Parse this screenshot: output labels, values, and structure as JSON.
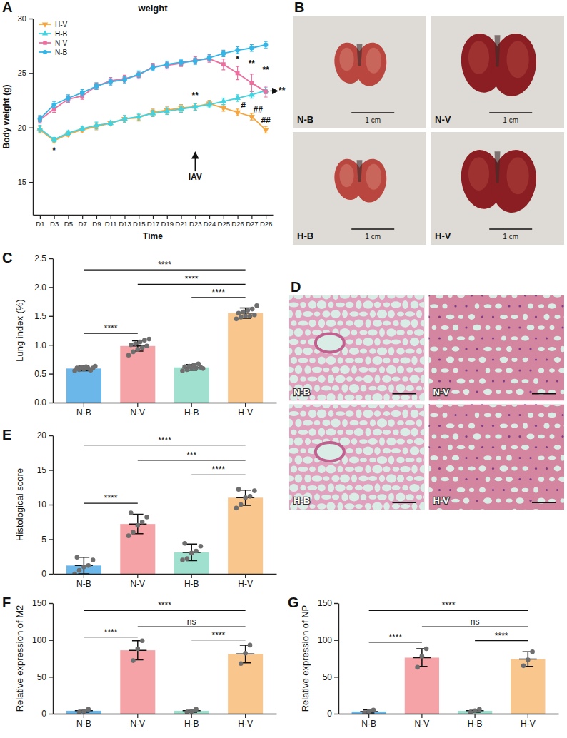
{
  "chart_data": [
    {
      "panel": "A",
      "type": "line",
      "title": "weight",
      "x_label": "Time",
      "y_label": "Body weight (g)",
      "categories": [
        "D1",
        "D3",
        "D5",
        "D7",
        "D9",
        "D11",
        "D13",
        "D15",
        "D17",
        "D19",
        "D21",
        "D23",
        "D24",
        "D25",
        "D26",
        "D27",
        "D28"
      ],
      "ylim": [
        12,
        30
      ],
      "yticks": [
        15,
        20,
        25,
        30
      ],
      "legend": "upper left",
      "series": [
        {
          "name": "H-V",
          "color": "#f5a640",
          "marker": "triangle-down",
          "values": [
            19.8,
            18.8,
            19.4,
            19.8,
            20.1,
            20.4,
            20.8,
            20.9,
            21.4,
            21.6,
            21.8,
            21.9,
            22.2,
            21.8,
            21.4,
            21.0,
            19.8
          ],
          "errors": [
            0.3,
            0.2,
            0.2,
            0.2,
            0.3,
            0.2,
            0.3,
            0.3,
            0.3,
            0.3,
            0.3,
            0.3,
            0.3,
            0.3,
            0.3,
            0.3,
            0.3
          ]
        },
        {
          "name": "H-B",
          "color": "#43d3e0",
          "marker": "triangle-up",
          "values": [
            19.9,
            18.9,
            19.5,
            19.9,
            20.2,
            20.4,
            20.8,
            21.0,
            21.3,
            21.5,
            21.7,
            21.9,
            22.1,
            22.4,
            22.7,
            23.0,
            23.4
          ],
          "errors": [
            0.3,
            0.2,
            0.2,
            0.2,
            0.3,
            0.2,
            0.3,
            0.3,
            0.3,
            0.3,
            0.3,
            0.3,
            0.3,
            0.3,
            0.3,
            0.3,
            0.3
          ]
        },
        {
          "name": "N-V",
          "color": "#ec6f9f",
          "marker": "square",
          "values": [
            20.7,
            21.7,
            22.6,
            22.9,
            23.8,
            24.3,
            24.5,
            24.8,
            25.6,
            25.7,
            25.9,
            26.2,
            26.3,
            25.8,
            25.0,
            24.1,
            23.3
          ],
          "errors": [
            0.3,
            0.3,
            0.3,
            0.3,
            0.3,
            0.3,
            0.3,
            0.3,
            0.3,
            0.3,
            0.3,
            0.3,
            0.3,
            0.5,
            0.6,
            0.8,
            0.5
          ]
        },
        {
          "name": "N-B",
          "color": "#35b4e6",
          "marker": "circle",
          "values": [
            20.8,
            22.1,
            22.7,
            23.2,
            23.8,
            24.2,
            24.4,
            24.9,
            25.5,
            25.8,
            26.0,
            26.1,
            26.4,
            26.8,
            27.1,
            27.3,
            27.6
          ],
          "errors": [
            0.3,
            0.3,
            0.3,
            0.3,
            0.3,
            0.3,
            0.3,
            0.3,
            0.3,
            0.3,
            0.3,
            0.3,
            0.3,
            0.3,
            0.3,
            0.3,
            0.3
          ]
        }
      ],
      "annotations": [
        {
          "text": "*",
          "x": 1,
          "y": 17.6
        },
        {
          "text": "**",
          "x": 11,
          "y": 22.7
        },
        {
          "text": "IAV",
          "x": 11,
          "y": 15.2,
          "marker": "arrow-up"
        },
        {
          "text": "*",
          "x": 14,
          "y": 26.0
        },
        {
          "text": "**",
          "x": 15,
          "y": 25.6
        },
        {
          "text": "**",
          "x": 16,
          "y": 25.0
        },
        {
          "text": "#",
          "x": 14.4,
          "y": 21.75
        },
        {
          "text": "##",
          "x": 15.45,
          "y": 21.35
        },
        {
          "text": "##",
          "x": 16,
          "y": 20.35
        },
        {
          "text": "**",
          "x": 16,
          "y": 23.1,
          "marker": "arrow-right"
        }
      ]
    },
    {
      "panel": "C",
      "type": "bar",
      "y_label": "Lung index (%)",
      "categories": [
        "N-B",
        "N-V",
        "H-B",
        "H-V"
      ],
      "colors": [
        "#6cb7ea",
        "#f5a3a6",
        "#9fe0cf",
        "#f9c68d"
      ],
      "values": [
        0.59,
        0.98,
        0.61,
        1.55
      ],
      "errors": [
        0.04,
        0.09,
        0.05,
        0.09
      ],
      "points": [
        [
          0.55,
          0.57,
          0.58,
          0.59,
          0.6,
          0.6,
          0.61,
          0.62,
          0.56,
          0.63
        ],
        [
          0.82,
          0.88,
          0.92,
          0.95,
          0.98,
          1.0,
          1.02,
          1.05,
          1.08,
          1.1
        ],
        [
          0.55,
          0.57,
          0.6,
          0.6,
          0.61,
          0.62,
          0.63,
          0.65,
          0.67,
          0.59
        ],
        [
          1.45,
          1.48,
          1.5,
          1.5,
          1.52,
          1.55,
          1.57,
          1.6,
          1.62,
          1.68
        ]
      ],
      "ylim": [
        0,
        2.5
      ],
      "yticks": [
        {
          "value": 0,
          "label": "0.0"
        },
        0.5,
        {
          "value": 1,
          "label": "1.0"
        },
        1.5,
        {
          "value": 2,
          "label": "2.0"
        },
        2.5
      ],
      "comparisons": [
        {
          "groups": [
            "N-B",
            "H-V"
          ],
          "label": "****",
          "y": 2.3
        },
        {
          "groups": [
            "N-V",
            "H-V"
          ],
          "label": "****",
          "y": 2.05
        },
        {
          "groups": [
            "H-B",
            "H-V"
          ],
          "label": "****",
          "y": 1.82
        },
        {
          "groups": [
            "N-B",
            "N-V"
          ],
          "label": "****",
          "y": 1.2
        }
      ]
    },
    {
      "panel": "E",
      "type": "bar",
      "y_label": "Histological score",
      "categories": [
        "N-B",
        "N-V",
        "H-B",
        "H-V"
      ],
      "colors": [
        "#6cb7ea",
        "#f5a3a6",
        "#9fe0cf",
        "#f9c68d"
      ],
      "values": [
        1.2,
        7.2,
        3.1,
        11.0
      ],
      "errors": [
        1.2,
        1.4,
        1.2,
        1.1
      ],
      "points": [
        [
          0,
          0.5,
          1,
          1.2,
          2,
          2.4
        ],
        [
          5.5,
          6,
          7,
          7.5,
          8.2,
          8.8
        ],
        [
          2,
          2.2,
          3,
          3.3,
          4,
          4.4
        ],
        [
          9.5,
          10,
          11,
          11.2,
          12,
          12.2
        ]
      ],
      "ylim": [
        0,
        20
      ],
      "yticks": [
        0,
        5,
        10,
        15,
        20
      ],
      "comparisons": [
        {
          "groups": [
            "N-B",
            "H-V"
          ],
          "label": "****",
          "y": 18.6
        },
        {
          "groups": [
            "N-V",
            "H-V"
          ],
          "label": "***",
          "y": 16.4
        },
        {
          "groups": [
            "H-B",
            "H-V"
          ],
          "label": "****",
          "y": 14.3
        },
        {
          "groups": [
            "N-B",
            "N-V"
          ],
          "label": "****",
          "y": 10.2
        }
      ]
    },
    {
      "panel": "F",
      "type": "bar",
      "y_label": "Relative expression of M2",
      "categories": [
        "N-B",
        "N-V",
        "H-B",
        "H-V"
      ],
      "colors": [
        "#6cb7ea",
        "#f5a3a6",
        "#9fe0cf",
        "#f9c68d"
      ],
      "values": [
        4,
        86,
        4,
        81
      ],
      "errors": [
        2,
        13,
        2,
        12
      ],
      "points": [
        [
          2,
          3,
          6
        ],
        [
          72,
          88,
          99
        ],
        [
          2,
          3,
          6
        ],
        [
          68,
          82,
          93
        ]
      ],
      "ylim": [
        0,
        150
      ],
      "yticks": [
        0,
        50,
        100,
        150
      ],
      "comparisons": [
        {
          "groups": [
            "N-B",
            "H-V"
          ],
          "label": "****",
          "y": 140
        },
        {
          "groups": [
            "N-V",
            "H-V"
          ],
          "label": "ns",
          "y": 118
        },
        {
          "groups": [
            "H-B",
            "H-V"
          ],
          "label": "****",
          "y": 100
        },
        {
          "groups": [
            "N-B",
            "N-V"
          ],
          "label": "****",
          "y": 104
        }
      ]
    },
    {
      "panel": "G",
      "type": "bar",
      "y_label": "Relative expression of NP",
      "categories": [
        "N-B",
        "N-V",
        "H-B",
        "H-V"
      ],
      "colors": [
        "#6cb7ea",
        "#f5a3a6",
        "#9fe0cf",
        "#f9c68d"
      ],
      "values": [
        3,
        76,
        4,
        74
      ],
      "errors": [
        2,
        12,
        2,
        10
      ],
      "points": [
        [
          1,
          3,
          5
        ],
        [
          63,
          78,
          88
        ],
        [
          2,
          4,
          6
        ],
        [
          65,
          73,
          84
        ]
      ],
      "ylim": [
        0,
        150
      ],
      "yticks": [
        0,
        50,
        100,
        150
      ],
      "comparisons": [
        {
          "groups": [
            "N-B",
            "H-V"
          ],
          "label": "****",
          "y": 140
        },
        {
          "groups": [
            "N-V",
            "H-V"
          ],
          "label": "ns",
          "y": 118
        },
        {
          "groups": [
            "H-B",
            "H-V"
          ],
          "label": "****",
          "y": 99
        },
        {
          "groups": [
            "N-B",
            "N-V"
          ],
          "label": "****",
          "y": 97
        }
      ]
    }
  ],
  "image_panels": [
    {
      "panel": "B",
      "images": [
        {
          "label": "N-B",
          "scale": "1 cm"
        },
        {
          "label": "N-V",
          "scale": "1 cm"
        },
        {
          "label": "H-B",
          "scale": "1 cm"
        },
        {
          "label": "H-V",
          "scale": "1 cm"
        }
      ]
    },
    {
      "panel": "D",
      "images": [
        {
          "label": "N-B"
        },
        {
          "label": "N-V"
        },
        {
          "label": "H-B"
        },
        {
          "label": "H-V"
        }
      ]
    }
  ]
}
